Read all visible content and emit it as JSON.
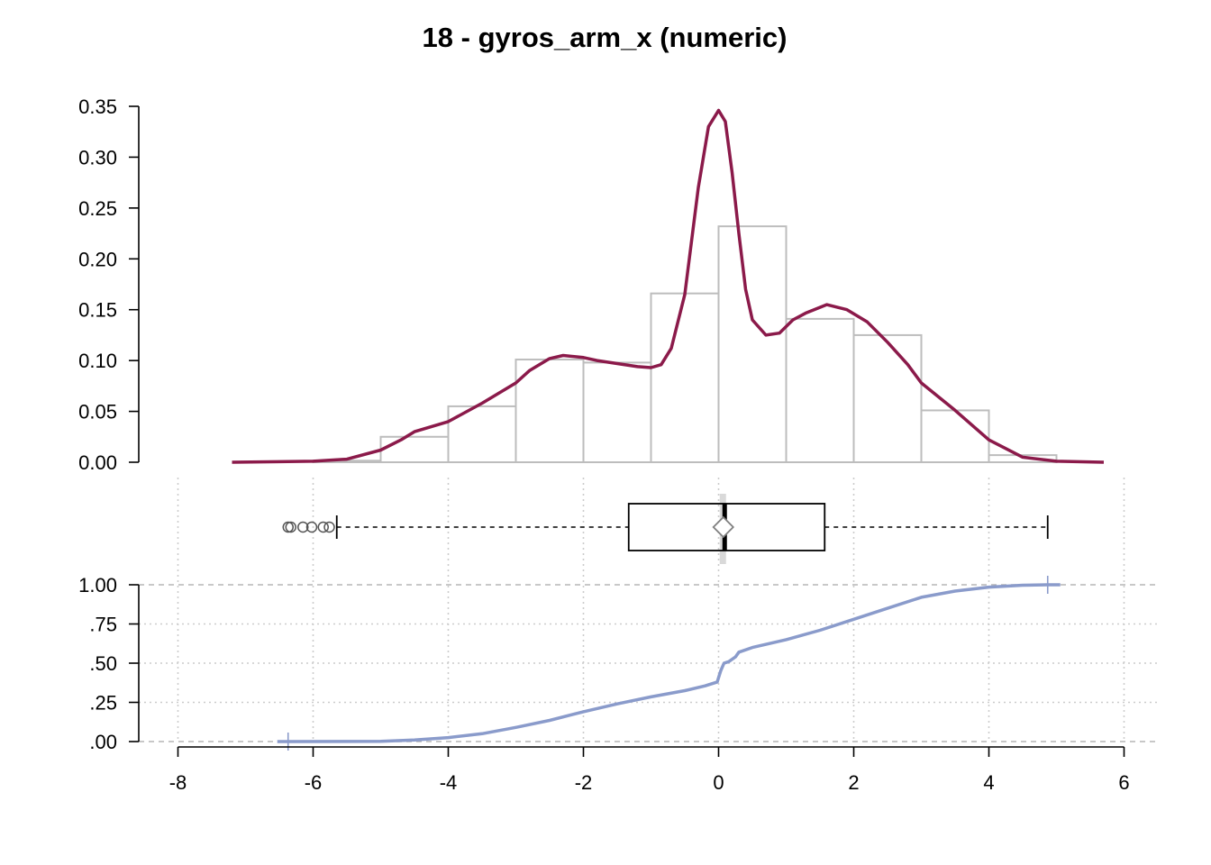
{
  "chart_data": [
    {
      "type": "histogram",
      "title": "18 - gyros_arm_x (numeric)",
      "bins": [
        {
          "x0": -6,
          "x1": -5,
          "density": 0.0015
        },
        {
          "x0": -5,
          "x1": -4,
          "density": 0.025
        },
        {
          "x0": -4,
          "x1": -3,
          "density": 0.055
        },
        {
          "x0": -3,
          "x1": -2,
          "density": 0.101
        },
        {
          "x0": -2,
          "x1": -1,
          "density": 0.098
        },
        {
          "x0": -1,
          "x1": 0,
          "density": 0.166
        },
        {
          "x0": 0,
          "x1": 1,
          "density": 0.232
        },
        {
          "x0": 1,
          "x1": 2,
          "density": 0.141
        },
        {
          "x0": 2,
          "x1": 3,
          "density": 0.125
        },
        {
          "x0": 3,
          "x1": 4,
          "density": 0.051
        },
        {
          "x0": 4,
          "x1": 5,
          "density": 0.007
        }
      ],
      "density_curve": {
        "x": [
          -7.2,
          -6.5,
          -6.0,
          -5.5,
          -5.0,
          -4.7,
          -4.5,
          -4.0,
          -3.5,
          -3.0,
          -2.8,
          -2.5,
          -2.3,
          -2.0,
          -1.8,
          -1.5,
          -1.2,
          -1.0,
          -0.85,
          -0.7,
          -0.5,
          -0.3,
          -0.15,
          0.0,
          0.1,
          0.2,
          0.3,
          0.4,
          0.5,
          0.7,
          0.9,
          1.1,
          1.3,
          1.6,
          1.9,
          2.2,
          2.5,
          2.8,
          3.0,
          3.5,
          4.0,
          4.5,
          5.0,
          5.7
        ],
        "y": [
          0.0,
          0.0005,
          0.001,
          0.003,
          0.012,
          0.022,
          0.03,
          0.04,
          0.058,
          0.078,
          0.09,
          0.102,
          0.105,
          0.103,
          0.1,
          0.097,
          0.094,
          0.093,
          0.096,
          0.112,
          0.165,
          0.27,
          0.33,
          0.346,
          0.335,
          0.285,
          0.225,
          0.17,
          0.14,
          0.125,
          0.127,
          0.14,
          0.147,
          0.155,
          0.15,
          0.138,
          0.118,
          0.096,
          0.078,
          0.051,
          0.022,
          0.005,
          0.001,
          0.0
        ]
      },
      "ylim": [
        0,
        0.35
      ],
      "yticks": [
        "0.00",
        "0.05",
        "0.10",
        "0.15",
        "0.20",
        "0.25",
        "0.30",
        "0.35"
      ],
      "colors": {
        "bars": "#bdbdbd",
        "density": "#8b1a4a"
      }
    },
    {
      "type": "boxplot",
      "min_whisker": -5.65,
      "q1": -1.33,
      "median": 0.09,
      "mean": 0.07,
      "q3": 1.57,
      "max_whisker": 4.87,
      "outliers": [
        -6.37,
        -6.33,
        -6.15,
        -6.02,
        -5.85,
        -5.76
      ],
      "colors": {
        "box": "#000000",
        "mean_marker": "#808080",
        "mean_band": "#d9d9d9"
      }
    },
    {
      "type": "line",
      "series": [
        {
          "x": [
            -6.37,
            -5.0,
            -4.5,
            -4.0,
            -3.5,
            -3.0,
            -2.5,
            -2.0,
            -1.5,
            -1.0,
            -0.5,
            -0.2,
            -0.02,
            0.03,
            0.08,
            0.15,
            0.25,
            0.3,
            0.5,
            1.0,
            1.5,
            2.0,
            2.5,
            3.0,
            3.5,
            4.0,
            4.5,
            4.87
          ],
          "y": [
            0.0,
            0.002,
            0.01,
            0.025,
            0.05,
            0.09,
            0.135,
            0.19,
            0.24,
            0.285,
            0.325,
            0.355,
            0.38,
            0.45,
            0.5,
            0.51,
            0.54,
            0.57,
            0.6,
            0.65,
            0.71,
            0.78,
            0.85,
            0.92,
            0.96,
            0.985,
            0.997,
            1.0
          ]
        }
      ],
      "ylim": [
        0,
        1
      ],
      "yticks": [
        "1.00",
        ".75",
        ".50",
        ".25",
        ".00"
      ],
      "xlim": [
        -8,
        6
      ],
      "xticks": [
        "-8",
        "-6",
        "-4",
        "-2",
        "0",
        "2",
        "4",
        "6"
      ],
      "colors": {
        "line": "#8a9bcb"
      }
    }
  ]
}
